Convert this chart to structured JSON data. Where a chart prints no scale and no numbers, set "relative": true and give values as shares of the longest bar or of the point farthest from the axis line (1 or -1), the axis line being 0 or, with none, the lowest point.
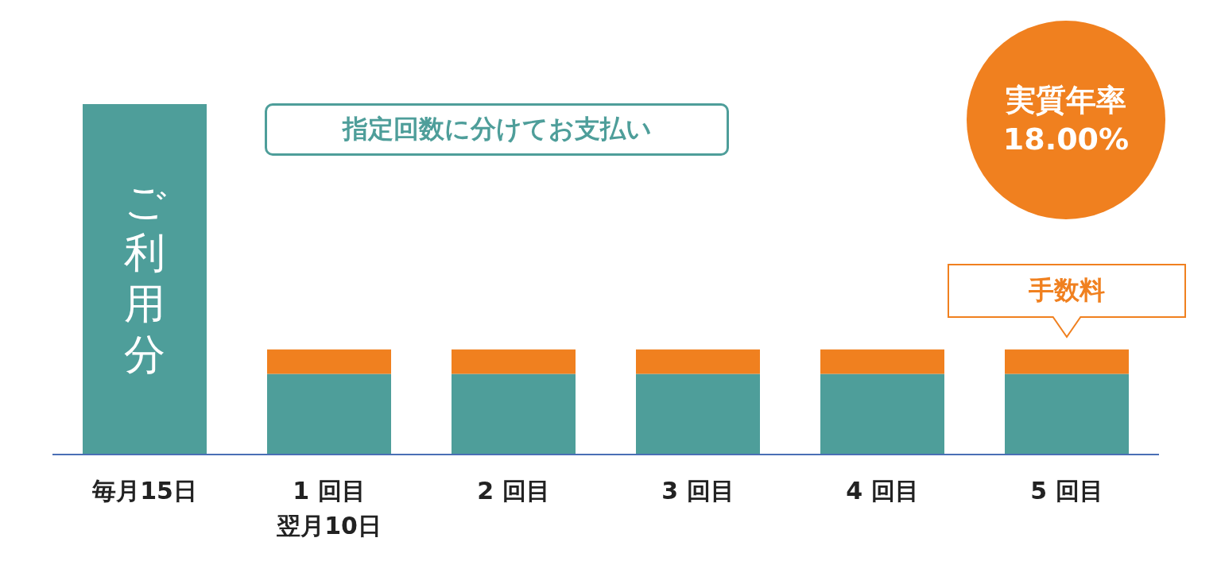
{
  "chart_data": {
    "type": "bar",
    "relative": true,
    "stacked": true,
    "legend": false,
    "grid": false,
    "categories": [
      "毎月15日",
      "1 回目",
      "2 回目",
      "3 回目",
      "4 回目",
      "5 回目"
    ],
    "series": [
      {
        "color": "#4e9e9a",
        "values": [
          1,
          0.23,
          0.23,
          0.23,
          0.23,
          0.23
        ]
      },
      {
        "color": "#f0801f",
        "values": [
          null,
          0.07,
          0.07,
          0.07,
          0.07,
          0.07
        ]
      }
    ],
    "annotations": [
      "ご利用分",
      "指定回数に分けてお支払い",
      "実質年率\n18.00%",
      "手数料",
      "翌月10日"
    ]
  }
}
